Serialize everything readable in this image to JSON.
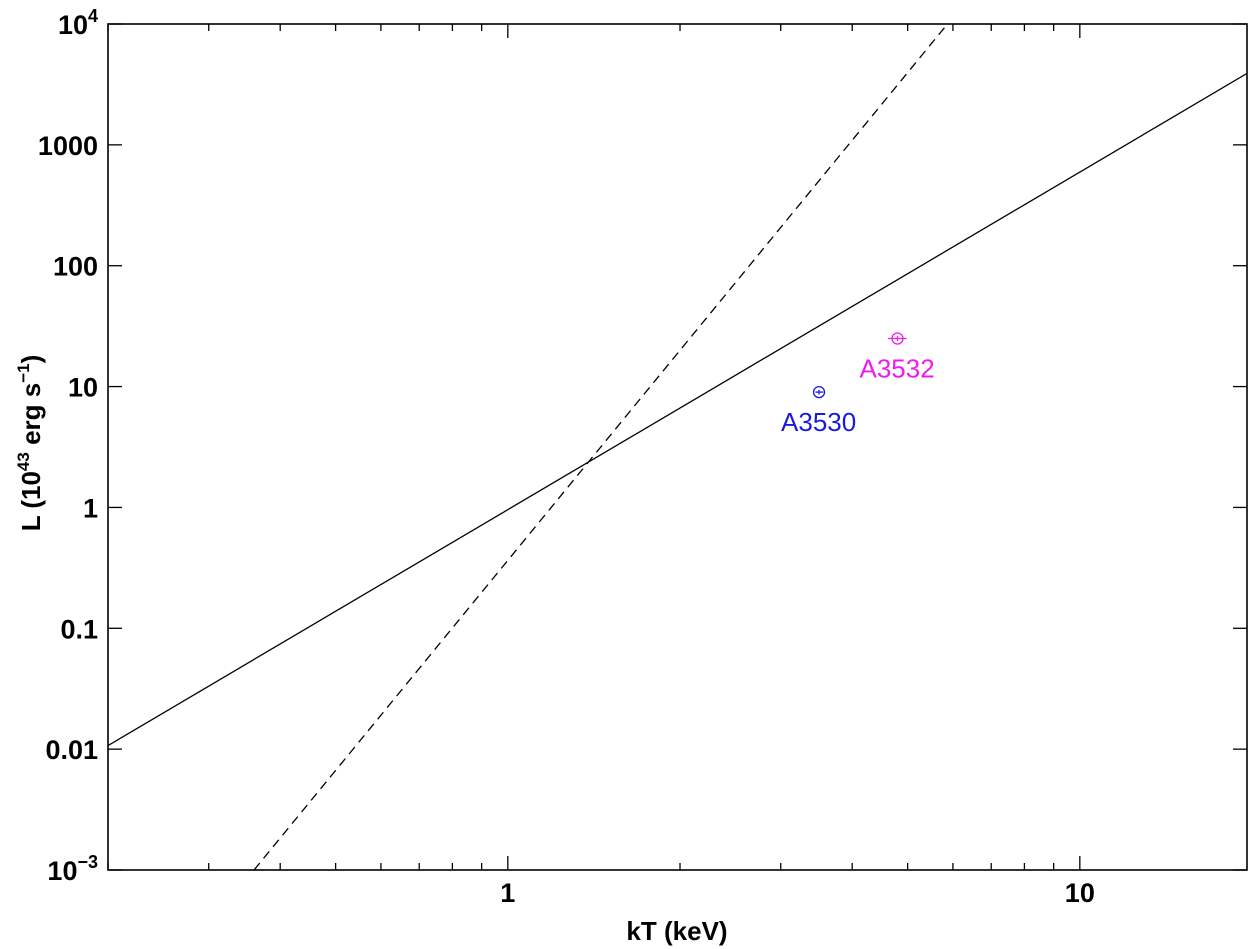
{
  "chart_data": {
    "type": "scatter",
    "xscale": "log",
    "yscale": "log",
    "xlim": [
      0.2,
      19.6
    ],
    "ylim": [
      0.001,
      10000
    ],
    "xlabel": "kT (keV)",
    "ylabel": {
      "pre": "L (10",
      "sup1": "43",
      "mid": " erg s",
      "sup2": "−1",
      "post": ")"
    },
    "x_ticks": [
      {
        "value": 1,
        "label": "1"
      },
      {
        "value": 10,
        "label": "10"
      }
    ],
    "y_ticks": [
      {
        "value": 0.001,
        "base": "10",
        "exp": "−3"
      },
      {
        "value": 0.01,
        "label": "0.01"
      },
      {
        "value": 0.1,
        "label": "0.1"
      },
      {
        "value": 1,
        "label": "1"
      },
      {
        "value": 10,
        "label": "10"
      },
      {
        "value": 100,
        "label": "100"
      },
      {
        "value": 1000,
        "label": "1000"
      },
      {
        "value": 10000,
        "base": "10",
        "exp": "4"
      }
    ],
    "lines": [
      {
        "style": "solid",
        "x": [
          0.2,
          19.6
        ],
        "y": [
          0.0107,
          3900
        ]
      },
      {
        "style": "dashed",
        "x": [
          0.36,
          5.87
        ],
        "y": [
          0.001,
          10000
        ]
      }
    ],
    "points": [
      {
        "label": "A3530",
        "x": 3.5,
        "y": 9.0,
        "xerr": [
          3.45,
          3.56
        ],
        "yerr": [
          8.6,
          9.4
        ],
        "color": "#1a1adc"
      },
      {
        "label": "A3532",
        "x": 4.8,
        "y": 25.0,
        "xerr": [
          4.62,
          4.98
        ],
        "yerr": [
          23.8,
          26.2
        ],
        "color": "#ee1cee"
      }
    ],
    "grid": false,
    "legend": "none"
  }
}
